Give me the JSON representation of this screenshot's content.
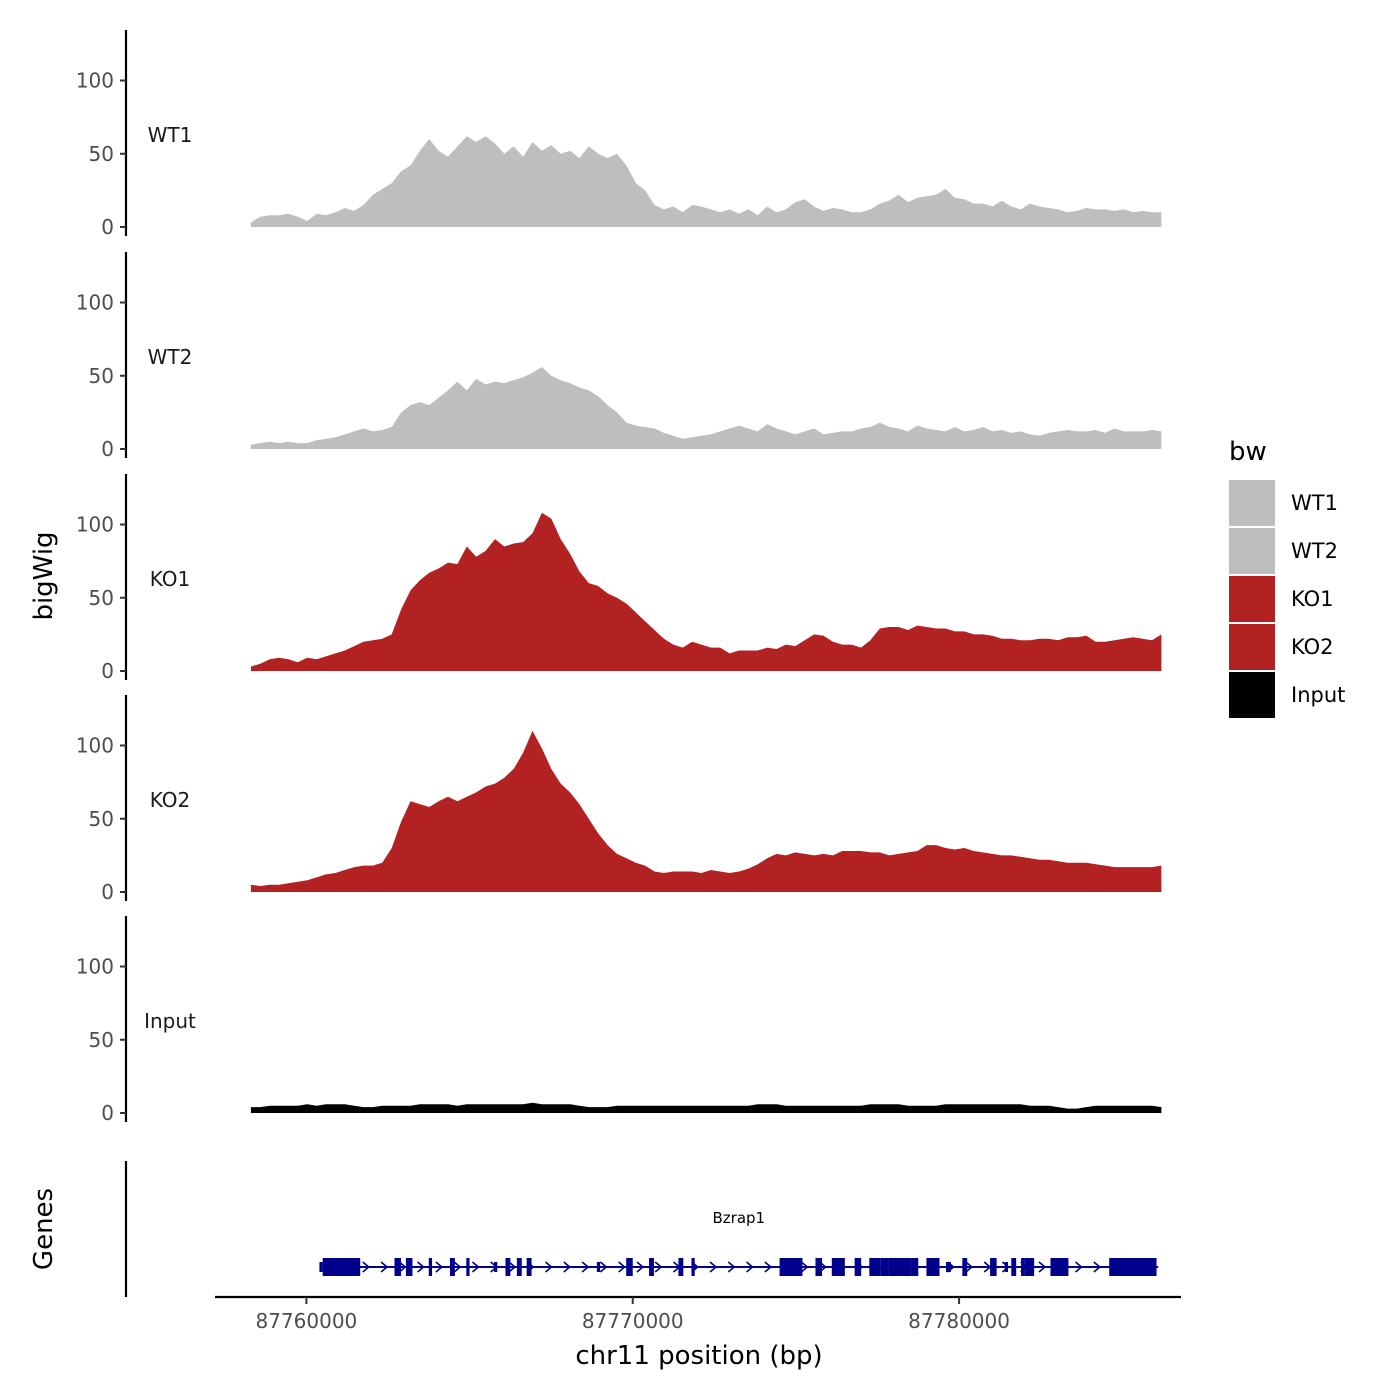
{
  "chart_data": {
    "type": "area",
    "chrom": "chr11",
    "xlabel": "chr11 position (bp)",
    "ylabel": "bigWig",
    "genes_label": "Genes",
    "xlim": [
      87757200,
      87786800
    ],
    "x_ticks": [
      87760000,
      87770000,
      87780000
    ],
    "x_tick_labels": [
      "87760000",
      "87770000",
      "87780000"
    ],
    "ylim": [
      0,
      133
    ],
    "y_ticks": [
      0,
      50,
      100
    ],
    "y_tick_labels": [
      "0",
      "50",
      "100"
    ],
    "x_start": 87758300,
    "x_end": 87786200,
    "legend": {
      "title": "bw",
      "position": "right",
      "entries": [
        "WT1",
        "WT2",
        "KO1",
        "KO2",
        "Input"
      ]
    },
    "tracks": [
      {
        "name": "WT1",
        "color": "#bebebe",
        "values": [
          3,
          7,
          8,
          8,
          9,
          7,
          4,
          9,
          8,
          10,
          13,
          11,
          15,
          22,
          26,
          30,
          38,
          42,
          52,
          60,
          52,
          48,
          55,
          62,
          58,
          62,
          57,
          50,
          55,
          48,
          58,
          52,
          56,
          50,
          52,
          47,
          55,
          50,
          47,
          50,
          42,
          30,
          25,
          15,
          12,
          14,
          10,
          15,
          14,
          12,
          10,
          12,
          9,
          12,
          8,
          14,
          10,
          12,
          17,
          19,
          14,
          11,
          13,
          12,
          10,
          10,
          12,
          16,
          18,
          22,
          17,
          20,
          21,
          22,
          26,
          20,
          19,
          16,
          16,
          14,
          18,
          14,
          12,
          16,
          14,
          13,
          12,
          10,
          11,
          13,
          12,
          12,
          11,
          12,
          10,
          11,
          10,
          10
        ]
      },
      {
        "name": "WT2",
        "color": "#bebebe",
        "values": [
          3,
          4,
          5,
          4,
          5,
          4,
          4,
          6,
          7,
          8,
          10,
          12,
          14,
          12,
          13,
          15,
          25,
          30,
          32,
          30,
          35,
          40,
          46,
          40,
          48,
          44,
          46,
          45,
          47,
          49,
          52,
          56,
          50,
          47,
          45,
          42,
          40,
          36,
          30,
          25,
          18,
          16,
          15,
          14,
          11,
          9,
          7,
          8,
          9,
          10,
          12,
          14,
          16,
          14,
          12,
          17,
          14,
          12,
          10,
          12,
          14,
          10,
          11,
          12,
          12,
          14,
          15,
          18,
          15,
          14,
          12,
          16,
          14,
          13,
          12,
          15,
          12,
          13,
          15,
          12,
          13,
          11,
          12,
          10,
          9,
          11,
          12,
          13,
          12,
          12,
          13,
          11,
          14,
          12,
          12,
          12,
          13,
          12
        ]
      },
      {
        "name": "KO1",
        "color": "#b22222",
        "values": [
          3,
          5,
          8,
          9,
          8,
          6,
          9,
          8,
          10,
          12,
          14,
          17,
          20,
          21,
          22,
          25,
          42,
          55,
          62,
          67,
          70,
          74,
          73,
          85,
          78,
          82,
          90,
          85,
          87,
          88,
          94,
          108,
          104,
          90,
          80,
          68,
          60,
          58,
          53,
          50,
          46,
          40,
          34,
          28,
          22,
          18,
          16,
          20,
          18,
          16,
          16,
          12,
          14,
          14,
          14,
          16,
          15,
          18,
          17,
          21,
          25,
          24,
          20,
          18,
          18,
          16,
          21,
          29,
          30,
          30,
          28,
          31,
          30,
          29,
          29,
          27,
          27,
          25,
          25,
          24,
          22,
          22,
          21,
          21,
          22,
          22,
          21,
          23,
          23,
          24,
          20,
          20,
          21,
          22,
          23,
          22,
          21,
          25
        ]
      },
      {
        "name": "KO2",
        "color": "#b22222",
        "values": [
          5,
          4,
          5,
          5,
          6,
          7,
          8,
          10,
          12,
          13,
          15,
          17,
          18,
          18,
          20,
          30,
          48,
          62,
          60,
          58,
          62,
          65,
          62,
          65,
          68,
          72,
          74,
          78,
          84,
          95,
          110,
          98,
          84,
          74,
          68,
          60,
          50,
          40,
          32,
          26,
          23,
          20,
          18,
          14,
          13,
          14,
          14,
          14,
          13,
          15,
          14,
          13,
          14,
          16,
          19,
          23,
          26,
          25,
          27,
          26,
          25,
          26,
          25,
          28,
          28,
          28,
          27,
          27,
          25,
          26,
          27,
          28,
          32,
          32,
          30,
          29,
          30,
          28,
          27,
          26,
          25,
          25,
          24,
          23,
          22,
          22,
          21,
          20,
          20,
          20,
          19,
          18,
          17,
          17,
          17,
          17,
          17,
          18
        ]
      },
      {
        "name": "Input",
        "color": "#000000",
        "values": [
          4,
          4,
          5,
          5,
          5,
          5,
          6,
          5,
          6,
          6,
          6,
          5,
          4,
          4,
          5,
          5,
          5,
          5,
          6,
          6,
          6,
          6,
          5,
          6,
          6,
          6,
          6,
          6,
          6,
          6,
          7,
          6,
          6,
          6,
          6,
          5,
          4,
          4,
          4,
          5,
          5,
          5,
          5,
          5,
          5,
          5,
          5,
          5,
          5,
          5,
          5,
          5,
          5,
          5,
          6,
          6,
          6,
          5,
          5,
          5,
          5,
          5,
          5,
          5,
          5,
          5,
          6,
          6,
          6,
          6,
          5,
          5,
          5,
          5,
          6,
          6,
          6,
          6,
          6,
          6,
          6,
          6,
          6,
          5,
          5,
          5,
          4,
          3,
          3,
          4,
          5,
          5,
          5,
          5,
          5,
          5,
          5,
          4
        ]
      }
    ],
    "genes": [
      {
        "name": "Bzrap1",
        "strand": "+",
        "start": 87760400,
        "end": 87786100,
        "color": "#00008b",
        "exons": [
          [
            87760400,
            87760500
          ],
          [
            87760500,
            87761650
          ],
          [
            87762700,
            87762900
          ],
          [
            87763050,
            87763250
          ],
          [
            87763750,
            87763850
          ],
          [
            87764400,
            87764550
          ],
          [
            87764900,
            87765000
          ],
          [
            87765750,
            87765850
          ],
          [
            87766100,
            87766250
          ],
          [
            87766450,
            87766600
          ],
          [
            87766750,
            87766900
          ],
          [
            87768900,
            87769000
          ],
          [
            87769800,
            87770000
          ],
          [
            87770500,
            87770650
          ],
          [
            87771400,
            87771550
          ],
          [
            87771800,
            87771900
          ],
          [
            87774500,
            87775200
          ],
          [
            87775600,
            87775800
          ],
          [
            87776100,
            87776500
          ],
          [
            87776800,
            87777000
          ],
          [
            87777250,
            87777600
          ],
          [
            87777600,
            87777850
          ],
          [
            87777850,
            87778500
          ],
          [
            87778500,
            87778750
          ],
          [
            87779000,
            87779400
          ],
          [
            87779600,
            87779750
          ],
          [
            87780100,
            87780250
          ],
          [
            87780950,
            87781150
          ],
          [
            87781400,
            87781500
          ],
          [
            87781600,
            87781750
          ],
          [
            87781900,
            87782000
          ],
          [
            87782000,
            87782300
          ],
          [
            87782800,
            87783350
          ],
          [
            87784600,
            87786050
          ]
        ],
        "utr_exons": [
          [
            87760400,
            87760500
          ],
          [
            87765750,
            87765850
          ],
          [
            87768900,
            87769000
          ],
          [
            87779600,
            87779750
          ],
          [
            87781400,
            87781500
          ]
        ]
      }
    ]
  }
}
